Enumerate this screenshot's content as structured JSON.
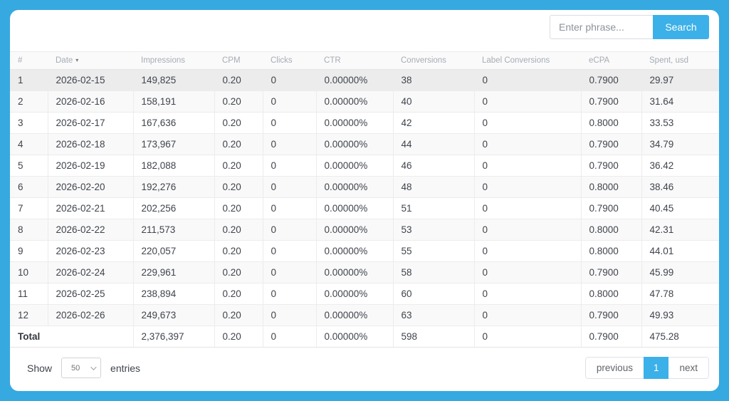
{
  "colors": {
    "accent": "#3cb0e8",
    "frame": "#36a9e0",
    "row_hover": "#ececec",
    "row_stripe": "#f9f9f9"
  },
  "search": {
    "placeholder": "Enter phrase...",
    "button": "Search"
  },
  "table": {
    "columns": [
      "#",
      "Date",
      "Impressions",
      "CPM",
      "Clicks",
      "CTR",
      "Conversions",
      "Label Conversions",
      "eCPA",
      "Spent, usd"
    ],
    "sorted_column": "Date",
    "sort_direction": "desc",
    "sort_icon": "▾",
    "rows": [
      [
        "1",
        "2026-02-15",
        "149,825",
        "0.20",
        "0",
        "0.00000%",
        "38",
        "0",
        "0.7900",
        "29.97"
      ],
      [
        "2",
        "2026-02-16",
        "158,191",
        "0.20",
        "0",
        "0.00000%",
        "40",
        "0",
        "0.7900",
        "31.64"
      ],
      [
        "3",
        "2026-02-17",
        "167,636",
        "0.20",
        "0",
        "0.00000%",
        "42",
        "0",
        "0.8000",
        "33.53"
      ],
      [
        "4",
        "2026-02-18",
        "173,967",
        "0.20",
        "0",
        "0.00000%",
        "44",
        "0",
        "0.7900",
        "34.79"
      ],
      [
        "5",
        "2026-02-19",
        "182,088",
        "0.20",
        "0",
        "0.00000%",
        "46",
        "0",
        "0.7900",
        "36.42"
      ],
      [
        "6",
        "2026-02-20",
        "192,276",
        "0.20",
        "0",
        "0.00000%",
        "48",
        "0",
        "0.8000",
        "38.46"
      ],
      [
        "7",
        "2026-02-21",
        "202,256",
        "0.20",
        "0",
        "0.00000%",
        "51",
        "0",
        "0.7900",
        "40.45"
      ],
      [
        "8",
        "2026-02-22",
        "211,573",
        "0.20",
        "0",
        "0.00000%",
        "53",
        "0",
        "0.8000",
        "42.31"
      ],
      [
        "9",
        "2026-02-23",
        "220,057",
        "0.20",
        "0",
        "0.00000%",
        "55",
        "0",
        "0.8000",
        "44.01"
      ],
      [
        "10",
        "2026-02-24",
        "229,961",
        "0.20",
        "0",
        "0.00000%",
        "58",
        "0",
        "0.7900",
        "45.99"
      ],
      [
        "11",
        "2026-02-25",
        "238,894",
        "0.20",
        "0",
        "0.00000%",
        "60",
        "0",
        "0.8000",
        "47.78"
      ],
      [
        "12",
        "2026-02-26",
        "249,673",
        "0.20",
        "0",
        "0.00000%",
        "63",
        "0",
        "0.7900",
        "49.93"
      ]
    ],
    "total_row": [
      "Total",
      "2,376,397",
      "0.20",
      "0",
      "0.00000%",
      "598",
      "0",
      "0.7900",
      "475.28"
    ]
  },
  "footer": {
    "show_label": "Show",
    "page_size": "50",
    "entries_label": "entries",
    "pagination": {
      "previous": "previous",
      "current_page": "1",
      "next": "next"
    }
  }
}
